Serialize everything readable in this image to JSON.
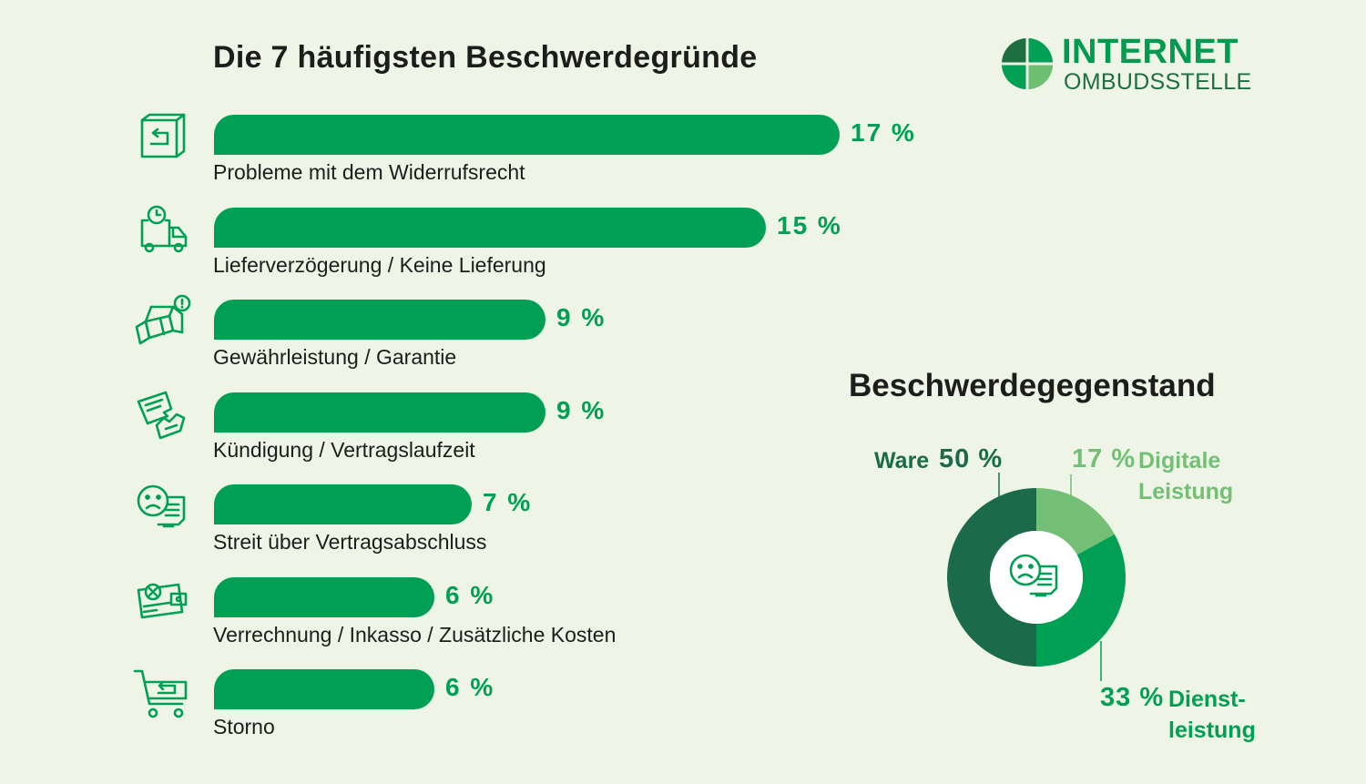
{
  "title": "Die 7 häufigsten Beschwerdegründe",
  "logo": {
    "line1": "INTERNET",
    "line2": "OMBUDSSTELLE"
  },
  "colors": {
    "background": "#eef5e6",
    "bar": "#00a054",
    "dark_green": "#1b6a4a",
    "mid_green": "#00a054",
    "light_green": "#72bf75",
    "text": "#1d1d1b"
  },
  "chart_data": [
    {
      "type": "bar",
      "orientation": "horizontal",
      "title": "Die 7 häufigsten Beschwerdegründe",
      "categories": [
        "Probleme mit dem Widerrufsrecht",
        "Lieferverzögerung / Keine Lieferung",
        "Gewährleistung / Garantie",
        "Kündigung / Vertragslaufzeit",
        "Streit über Vertragsabschluss",
        "Verrechnung / Inkasso / Zusätzliche Kosten",
        "Storno"
      ],
      "values": [
        17,
        15,
        9,
        9,
        7,
        6,
        6
      ],
      "value_labels": [
        "17 %",
        "15 %",
        "9 %",
        "9 %",
        "7 %",
        "6 %",
        "6 %"
      ],
      "icons": [
        "return-box-icon",
        "delivery-truck-clock-icon",
        "warranty-package-icon",
        "cancellation-document-icon",
        "dispute-face-icon",
        "invoice-card-icon",
        "cart-return-icon"
      ],
      "unit": "%",
      "xlim": [
        0,
        17
      ]
    },
    {
      "type": "pie",
      "variant": "donut",
      "title": "Beschwerdegegenstand",
      "categories": [
        "Ware",
        "Digitale Leistung",
        "Dienstleistung"
      ],
      "values": [
        50,
        17,
        33
      ],
      "labels": [
        {
          "pct": "50 %",
          "lines": [
            "Ware"
          ]
        },
        {
          "pct": "17 %",
          "lines": [
            "Digitale",
            "Leistung"
          ]
        },
        {
          "pct": "33 %",
          "lines": [
            "Dienst-",
            "leistung"
          ]
        }
      ],
      "colors": [
        "#1b6a4a",
        "#72bf75",
        "#00a054"
      ],
      "center_icon": "dispute-face-icon"
    }
  ]
}
